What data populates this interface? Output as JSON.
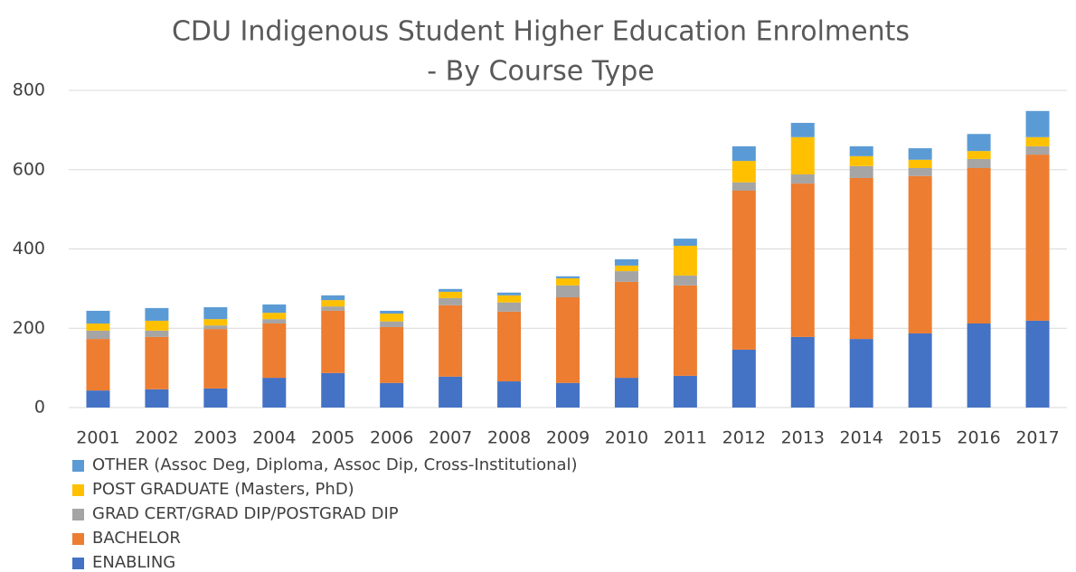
{
  "chart_data": {
    "type": "stacked_bar",
    "title": [
      "CDU Indigenous Student Higher Education Enrolments",
      "- By Course Type"
    ],
    "categories": [
      "2001",
      "2002",
      "2003",
      "2004",
      "2005",
      "2006",
      "2007",
      "2008",
      "2009",
      "2010",
      "2011",
      "2012",
      "2013",
      "2014",
      "2015",
      "2016",
      "2017"
    ],
    "series": [
      {
        "name": "ENABLING",
        "color": "#4472c4",
        "values": [
          43,
          46,
          48,
          75,
          87,
          62,
          78,
          66,
          62,
          75,
          80,
          146,
          178,
          173,
          187,
          212,
          219
        ]
      },
      {
        "name": "BACHELOR",
        "color": "#ed7d31",
        "values": [
          130,
          132,
          150,
          137,
          157,
          141,
          180,
          176,
          216,
          242,
          228,
          401,
          387,
          406,
          397,
          392,
          419
        ]
      },
      {
        "name": "GRAD CERT/GRAD DIP/POSTGRAD DIP",
        "color": "#a5a5a5",
        "values": [
          21,
          16,
          9,
          11,
          11,
          14,
          18,
          23,
          30,
          27,
          25,
          21,
          23,
          30,
          20,
          23,
          21
        ]
      },
      {
        "name": "POST GRADUATE (Masters, PhD)",
        "color": "#ffc000",
        "values": [
          18,
          25,
          16,
          16,
          16,
          20,
          16,
          18,
          18,
          14,
          75,
          54,
          94,
          25,
          21,
          20,
          23
        ]
      },
      {
        "name": "OTHER (Assoc Deg, Diploma, Assoc Dip, Cross-Institutional)",
        "color": "#5b9bd5",
        "values": [
          32,
          32,
          30,
          21,
          12,
          7,
          7,
          7,
          5,
          16,
          18,
          37,
          36,
          25,
          29,
          43,
          66
        ]
      }
    ],
    "ylim": [
      0,
      800
    ],
    "yticks": [
      0,
      200,
      400,
      600,
      800
    ],
    "grid": true
  }
}
